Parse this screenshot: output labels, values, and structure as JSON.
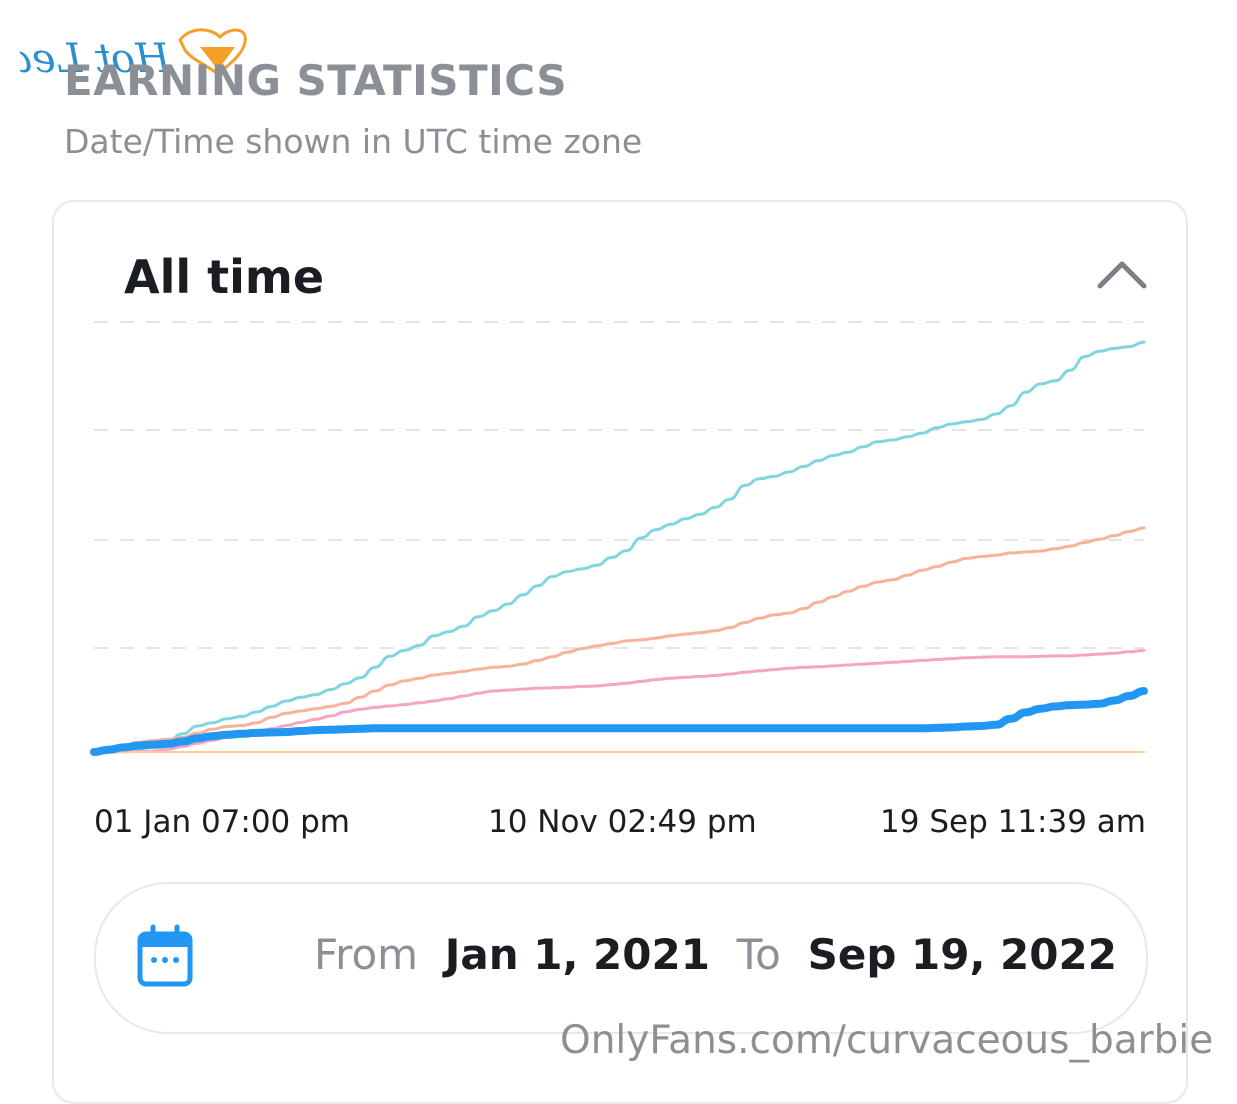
{
  "header": {
    "logo_text": "Hot Leak",
    "title": "EARNING STATISTICS",
    "subtitle": "Date/Time shown in UTC time zone"
  },
  "card": {
    "title": "All time",
    "collapse_icon": "chevron-up-icon"
  },
  "range": {
    "icon": "calendar-icon",
    "from_label": "From",
    "from_value": "Jan 1, 2021",
    "to_label": "To",
    "to_value": "Sep 19, 2022"
  },
  "watermark": "OnlyFans.com/curvaceous_barbie",
  "colors": {
    "accent": "#2196f3",
    "muted_text": "#8a9096",
    "grid": "#e3e6e9"
  },
  "chart_data": {
    "type": "line",
    "grid": true,
    "x_tick_labels": [
      "01 Jan 07:00 pm",
      "10 Nov 02:49 pm",
      "19 Sep 11:39 am"
    ],
    "series": [
      {
        "color": "#7fd6de",
        "width": 3,
        "values": [
          0,
          1.5,
          4,
          7,
          12,
          25,
          40,
          57,
          64,
          73,
          78,
          88,
          100,
          112,
          120,
          126,
          137,
          150,
          163,
          186,
          210,
          223,
          234,
          255,
          264,
          276,
          297,
          310,
          325,
          345,
          365,
          385,
          396,
          402,
          410,
          427,
          442,
          470,
          488,
          500,
          512,
          522,
          537,
          555,
          585,
          600,
          605,
          615,
          627,
          640,
          651,
          658,
          670,
          681,
          685,
          692,
          700,
          712,
          720,
          725,
          730,
          742,
          760,
          790,
          808,
          815,
          838,
          868,
          880,
          886,
          890,
          900
        ]
      },
      {
        "color": "#f6b39a",
        "width": 3,
        "values": [
          0,
          7,
          14,
          21,
          25,
          28,
          32,
          41,
          50,
          56,
          58,
          64,
          76,
          85,
          90,
          95,
          100,
          107,
          120,
          134,
          147,
          156,
          162,
          169,
          173,
          177,
          182,
          186,
          188,
          193,
          201,
          209,
          219,
          227,
          233,
          238,
          244,
          246,
          250,
          255,
          259,
          262,
          266,
          273,
          284,
          294,
          301,
          305,
          315,
          329,
          341,
          353,
          364,
          373,
          378,
          388,
          399,
          407,
          417,
          425,
          429,
          432,
          437,
          439,
          441,
          446,
          452,
          460,
          467,
          475,
          484,
          492
        ]
      },
      {
        "color": "#f3a5c2",
        "width": 3,
        "values": [
          0,
          0,
          0.5,
          1,
          2,
          6,
          12,
          19,
          26,
          32,
          35,
          41,
          51,
          58,
          65,
          72,
          79,
          88,
          94,
          98,
          101,
          104,
          108,
          112,
          117,
          123,
          129,
          134,
          136,
          138,
          140,
          141,
          142,
          144,
          145,
          148,
          151,
          155,
          159,
          162,
          164,
          166,
          168,
          171,
          175,
          178,
          181,
          184,
          186,
          187,
          189,
          191,
          193,
          195,
          197,
          199,
          201,
          203,
          205,
          207,
          208,
          209,
          209,
          209,
          210,
          211,
          211,
          213,
          215,
          217,
          220,
          223
        ]
      },
      {
        "color": "#ffcc99",
        "width": 2,
        "values": [
          0,
          0,
          0,
          0,
          0,
          0,
          0,
          0,
          0,
          0,
          0,
          0,
          0,
          0,
          0,
          0,
          0,
          0,
          0,
          0,
          0,
          0,
          0,
          0,
          0,
          0,
          0,
          0,
          0,
          0,
          0,
          0,
          0,
          0,
          0,
          0,
          0,
          0,
          0,
          0,
          0,
          0,
          0,
          0,
          0,
          0,
          0,
          0,
          0,
          0,
          0,
          0,
          0,
          0,
          0,
          0,
          0,
          0,
          0,
          0,
          0,
          0,
          0,
          0,
          0,
          0,
          0,
          0,
          0,
          0,
          0,
          0
        ]
      },
      {
        "color": "#2196f3",
        "width": 8,
        "values": [
          0,
          5,
          10,
          14,
          16,
          18,
          23,
          30,
          35,
          38,
          40,
          42,
          43,
          44,
          46,
          48,
          49,
          50,
          51,
          52,
          52,
          52,
          52,
          52,
          52,
          52,
          52,
          52,
          52,
          52,
          52,
          52,
          52,
          52,
          52,
          52,
          52,
          52,
          52,
          52,
          52,
          52,
          52,
          52,
          52,
          52,
          52,
          52,
          52,
          52,
          52,
          52,
          52,
          52,
          52,
          52,
          52,
          53,
          54,
          56,
          57,
          60,
          73,
          87,
          95,
          100,
          103,
          104,
          106,
          113,
          123,
          134
        ]
      }
    ]
  }
}
